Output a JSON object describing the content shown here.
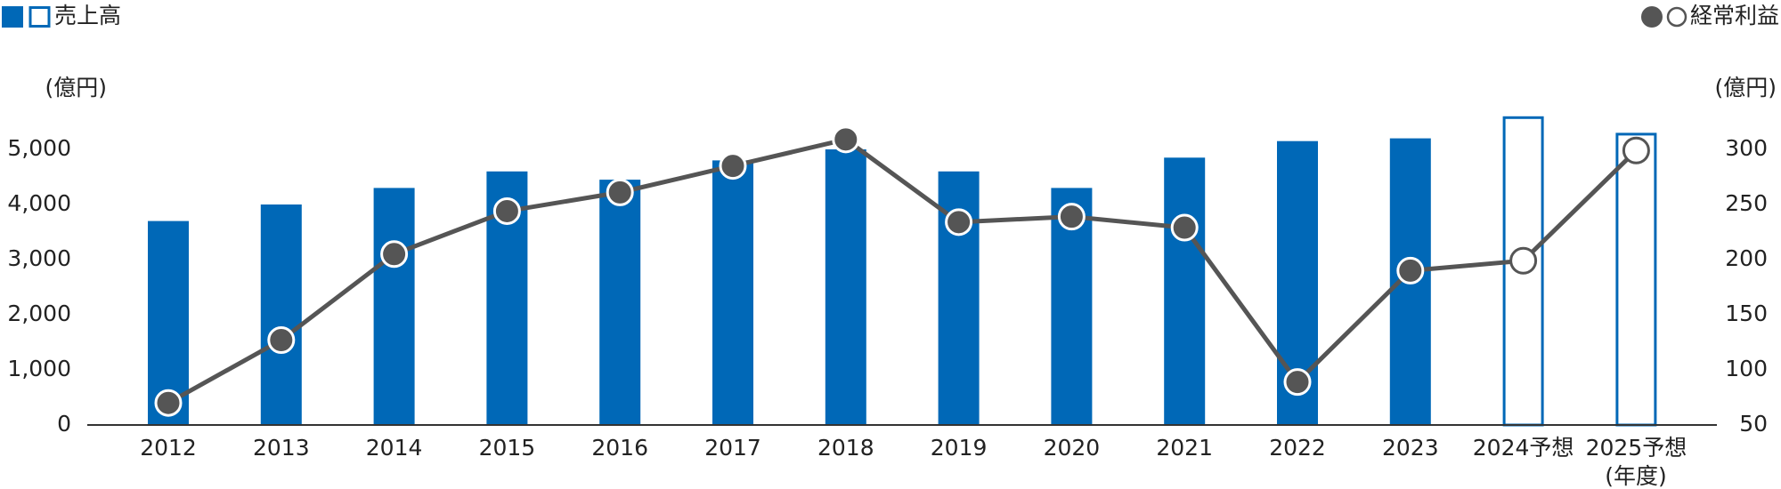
{
  "chart_data": {
    "type": "bar-line",
    "categories": [
      "2012",
      "2013",
      "2014",
      "2015",
      "2016",
      "2017",
      "2018",
      "2019",
      "2020",
      "2021",
      "2022",
      "2023",
      "2024予想",
      "2025予想"
    ],
    "x_axis_label": "(年度)",
    "y_axis_label": "(億円)",
    "y2_axis_label": "(億円)",
    "series": [
      {
        "name": "売上高",
        "type": "bar",
        "color": "#0068b7",
        "values": [
          3700,
          4000,
          4300,
          4600,
          4450,
          4800,
          5000,
          4600,
          4300,
          4850,
          5150,
          5200,
          5600,
          5300
        ],
        "hollow": [
          false,
          false,
          false,
          false,
          false,
          false,
          false,
          false,
          false,
          false,
          false,
          false,
          true,
          true
        ]
      },
      {
        "name": "経常利益",
        "type": "line",
        "axis": "y2",
        "color": "#555555",
        "values": [
          70,
          127,
          205,
          244,
          261,
          285,
          309,
          234,
          239,
          229,
          89,
          190,
          199,
          299
        ],
        "hollow": [
          false,
          false,
          false,
          false,
          false,
          false,
          false,
          false,
          false,
          false,
          false,
          false,
          true,
          true
        ]
      }
    ],
    "ylim": [
      0,
      5700
    ],
    "yticks": [
      0,
      {
        "value": 1000,
        "label": "1,000"
      },
      {
        "value": 2000,
        "label": "2,000"
      },
      {
        "value": 3000,
        "label": "3,000"
      },
      {
        "value": 4000,
        "label": "4,000"
      },
      {
        "value": 5000,
        "label": "5,000"
      }
    ],
    "y2lim": [
      50,
      335
    ],
    "y2ticks": [
      50,
      100,
      150,
      200,
      250,
      300
    ]
  }
}
